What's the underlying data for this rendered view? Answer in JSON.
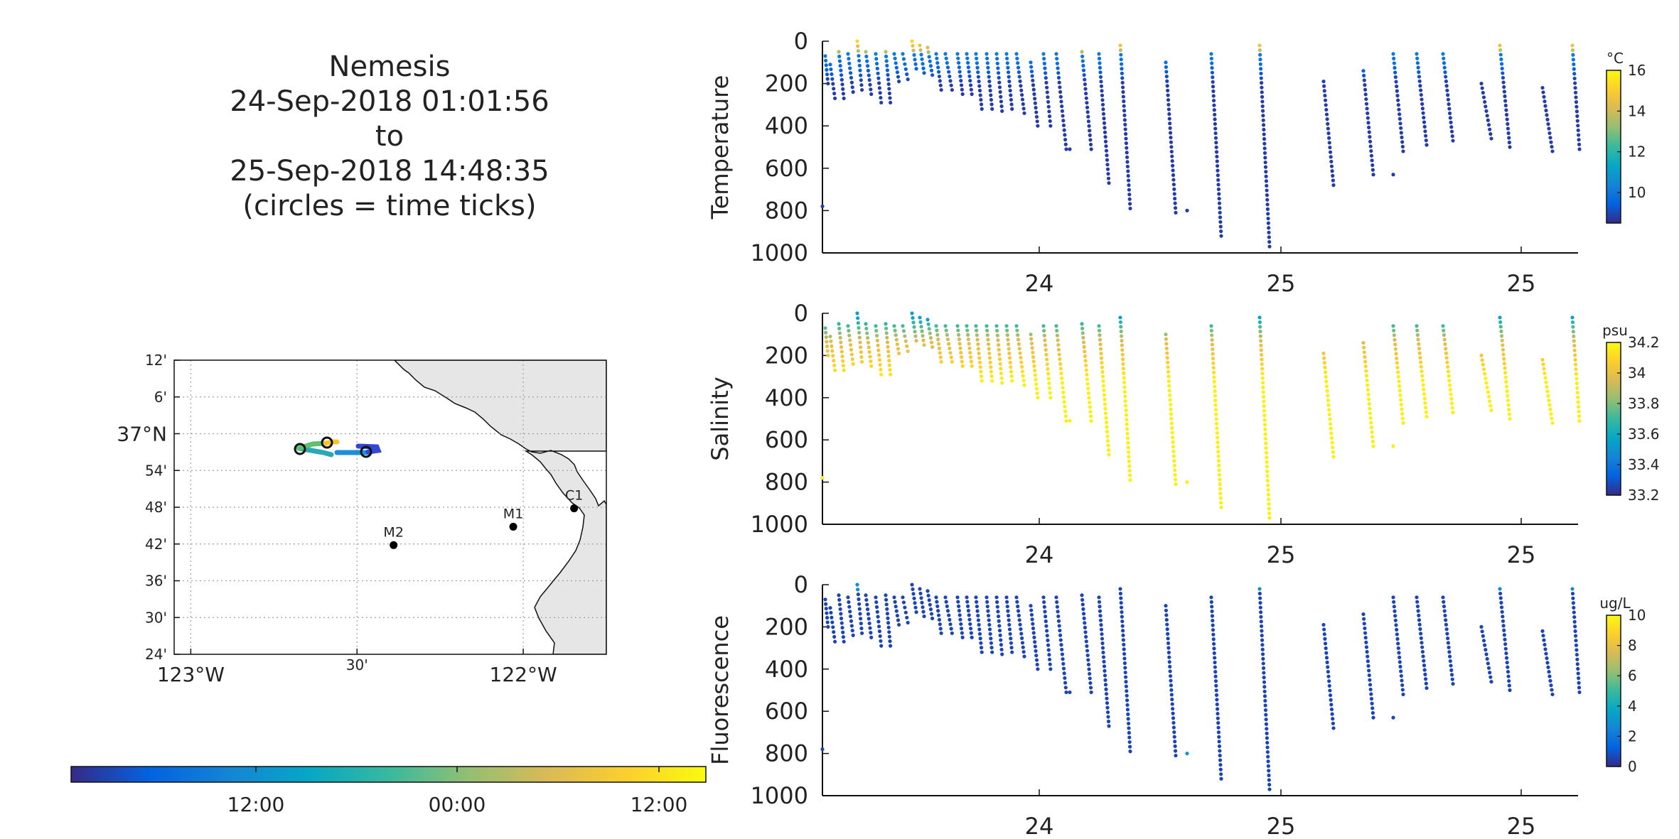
{
  "title": {
    "vehicle": "Nemesis",
    "start": "24-Sep-2018 01:01:56",
    "to": "to",
    "end": "25-Sep-2018 14:48:35",
    "note": "(circles = time ticks)"
  },
  "colors": {
    "land": "#e6e6e6",
    "grid": "#a0a0a0",
    "parula": [
      "#352a87",
      "#0363e1",
      "#1485d4",
      "#06a7c6",
      "#38b99e",
      "#92bf73",
      "#d9ba56",
      "#fcce2e",
      "#f9fb0e"
    ]
  },
  "map": {
    "lat_ticks": [
      "12'",
      "6'",
      "37°N",
      "54'",
      "48'",
      "42'",
      "36'",
      "30'",
      "24'"
    ],
    "lon_ticks": [
      "123°W",
      "30'",
      "122°W"
    ],
    "stations": [
      {
        "name": "C1",
        "lon": -121.847,
        "lat": 36.797
      },
      {
        "name": "M1",
        "lon": -122.03,
        "lat": 36.747
      },
      {
        "name": "M2",
        "lon": -122.39,
        "lat": 36.697
      }
    ]
  },
  "time_colorbar": {
    "tick_labels": [
      "12:00",
      "00:00",
      "12:00"
    ]
  },
  "chart_data": [
    {
      "type": "scatter",
      "panel": "temperature",
      "ylabel": "Temperature",
      "ylim": [
        1000,
        0
      ],
      "x_tick_labels": [
        "24",
        "25",
        "25"
      ],
      "y_tick_labels": [
        "0",
        "200",
        "400",
        "600",
        "800",
        "1000"
      ],
      "colorbar": {
        "unit": "°C",
        "range": [
          8.5,
          16
        ],
        "tick_labels": [
          "16",
          "14",
          "12",
          "10"
        ]
      }
    },
    {
      "type": "scatter",
      "panel": "salinity",
      "ylabel": "Salinity",
      "ylim": [
        1000,
        0
      ],
      "x_tick_labels": [
        "24",
        "25",
        "25"
      ],
      "y_tick_labels": [
        "0",
        "200",
        "400",
        "600",
        "800",
        "1000"
      ],
      "colorbar": {
        "unit": "psu",
        "range": [
          33.2,
          34.2
        ],
        "tick_labels": [
          "34.2",
          "34",
          "33.8",
          "33.6",
          "33.4",
          "33.2"
        ]
      }
    },
    {
      "type": "scatter",
      "panel": "fluorescence",
      "ylabel": "Fluorescence",
      "ylim": [
        1000,
        0
      ],
      "x_tick_labels": [
        "24",
        "25",
        "25"
      ],
      "y_tick_labels": [
        "0",
        "200",
        "400",
        "600",
        "800",
        "1000"
      ],
      "colorbar": {
        "unit": "ug/L",
        "range": [
          0,
          10
        ],
        "tick_labels": [
          "10",
          "8",
          "6",
          "4",
          "2",
          "0"
        ]
      }
    }
  ],
  "profiles": [
    {
      "x": 1161,
      "top": 70,
      "bot": 200
    },
    {
      "x": 1168,
      "top": 110,
      "bot": 270
    },
    {
      "x": 1180,
      "top": 50,
      "bot": 270
    },
    {
      "x": 1193,
      "top": 60,
      "bot": 240
    },
    {
      "x": 1206,
      "top": 0,
      "bot": 230
    },
    {
      "x": 1218,
      "top": 50,
      "bot": 250
    },
    {
      "x": 1232,
      "top": 60,
      "bot": 290
    },
    {
      "x": 1246,
      "top": 50,
      "bot": 290
    },
    {
      "x": 1258,
      "top": 60,
      "bot": 190
    },
    {
      "x": 1270,
      "top": 60,
      "bot": 180
    },
    {
      "x": 1283,
      "top": 0,
      "bot": 130
    },
    {
      "x": 1294,
      "top": 20,
      "bot": 150
    },
    {
      "x": 1305,
      "top": 30,
      "bot": 160
    },
    {
      "x": 1317,
      "top": 60,
      "bot": 230
    },
    {
      "x": 1330,
      "top": 60,
      "bot": 230
    },
    {
      "x": 1347,
      "top": 60,
      "bot": 250
    },
    {
      "x": 1360,
      "top": 60,
      "bot": 250
    },
    {
      "x": 1373,
      "top": 60,
      "bot": 320
    },
    {
      "x": 1388,
      "top": 60,
      "bot": 320
    },
    {
      "x": 1402,
      "top": 60,
      "bot": 330
    },
    {
      "x": 1416,
      "top": 60,
      "bot": 320
    },
    {
      "x": 1430,
      "top": 60,
      "bot": 340
    },
    {
      "x": 1450,
      "top": 100,
      "bot": 400
    },
    {
      "x": 1468,
      "top": 60,
      "bot": 400
    },
    {
      "x": 1486,
      "top": 60,
      "bot": 510
    },
    {
      "x": 1522,
      "top": 50,
      "bot": 510
    },
    {
      "x": 1546,
      "top": 60,
      "bot": 670
    },
    {
      "x": 1576,
      "top": 20,
      "bot": 790
    },
    {
      "x": 1640,
      "top": 100,
      "bot": 810
    },
    {
      "x": 1704,
      "top": 60,
      "bot": 920
    },
    {
      "x": 1772,
      "top": 20,
      "bot": 970
    },
    {
      "x": 1862,
      "top": 190,
      "bot": 680
    },
    {
      "x": 1918,
      "top": 140,
      "bot": 630
    },
    {
      "x": 1960,
      "top": 60,
      "bot": 520
    },
    {
      "x": 1993,
      "top": 60,
      "bot": 490
    },
    {
      "x": 2030,
      "top": 60,
      "bot": 470
    },
    {
      "x": 2084,
      "top": 200,
      "bot": 460
    },
    {
      "x": 2110,
      "top": 20,
      "bot": 500
    },
    {
      "x": 2170,
      "top": 220,
      "bot": 520
    },
    {
      "x": 2212,
      "top": 20,
      "bot": 510
    }
  ],
  "isolated_points": [
    {
      "x": 1157,
      "depth": 780
    },
    {
      "x": 1505,
      "depth": 510
    },
    {
      "x": 1960,
      "depth": 630
    },
    {
      "x": 1670,
      "depth": 800
    }
  ]
}
